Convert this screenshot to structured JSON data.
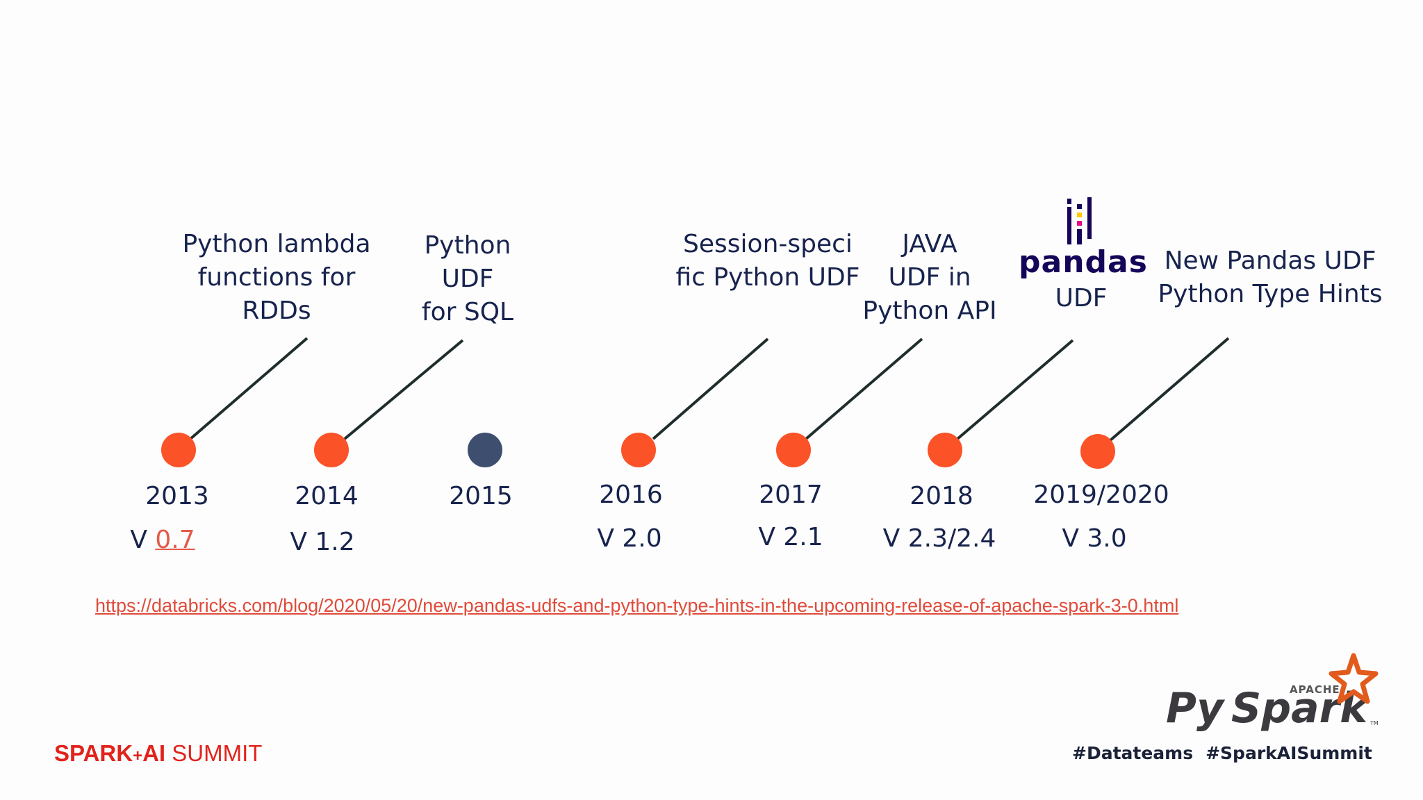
{
  "milestones": [
    {
      "year": "2013",
      "version_prefix": "V ",
      "version_link": "0.7",
      "feature_lines": [
        "Python lambda",
        "functions for",
        "RDDs"
      ],
      "highlighted": true
    },
    {
      "year": "2014",
      "version_prefix": "V 1.2",
      "version_link": "",
      "feature_lines": [
        "Python",
        "UDF",
        "for SQL"
      ],
      "highlighted": true
    },
    {
      "year": "2015",
      "version_prefix": "",
      "version_link": "",
      "feature_lines": [],
      "highlighted": false
    },
    {
      "year": "2016",
      "version_prefix": "V 2.0",
      "version_link": "",
      "feature_lines": [
        "Session-speci",
        "fic Python UDF"
      ],
      "highlighted": true
    },
    {
      "year": "2017",
      "version_prefix": "V 2.1",
      "version_link": "",
      "feature_lines": [
        "JAVA",
        "UDF in",
        "Python API"
      ],
      "highlighted": true
    },
    {
      "year": "2018",
      "version_prefix": "V 2.3/2.4",
      "version_link": "",
      "feature_lines": [
        "UDF"
      ],
      "logo_text": "pandas",
      "highlighted": true
    },
    {
      "year": "2019/2020",
      "version_prefix": "V 3.0",
      "version_link": "",
      "feature_lines": [
        "New Pandas UDF",
        "Python Type Hints"
      ],
      "highlighted": true
    }
  ],
  "url": "https://databricks.com/blog/2020/05/20/new-pandas-udfs-and-python-type-hints-in-the-upcoming-release-of-apache-spark-3-0.html",
  "footer": {
    "summit_brand": "SPARK",
    "summit_plus": "+",
    "summit_ai": "AI",
    "summit_word": " SUMMIT",
    "hashtag_1": "#Datateams",
    "hashtag_2": "#SparkAISummit",
    "pyspark_apache": "APACHE",
    "pyspark_py": "Py",
    "pyspark_spark": "Spark",
    "pyspark_tm": "TM"
  },
  "colors": {
    "dot_highlight": "#fb5227",
    "dot_plain": "#3d4e6e",
    "text": "#17234d",
    "link": "#e04b3a",
    "brand_red": "#e1231b",
    "spark_orange": "#e25a1c",
    "pandas_navy": "#150458"
  }
}
